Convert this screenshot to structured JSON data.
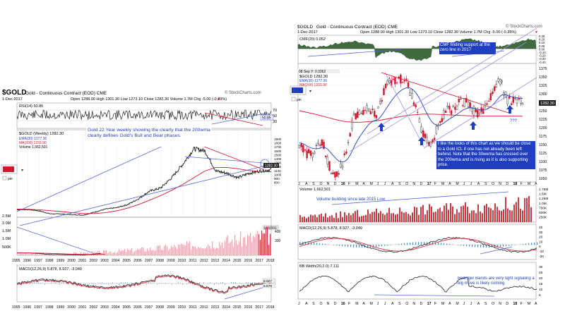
{
  "left_chart": {
    "symbol": "$GOLD",
    "name": "Gold - Continuous Contract (EOD) CME",
    "date": "1-Dec-2017",
    "ohlc": "Open 1288.00  High 1301.30  Low 1273.10  Close 1282.30  Volume 1.7M  Chg -5.00 (-0.39%)",
    "ohlc_arrow": "▼",
    "watermark": "© StockCharts.com",
    "rsi_label": "RSI(14) 50.85",
    "rsi_ticks": [
      "70",
      "50",
      "30"
    ],
    "rsi_value_badge": "50.85",
    "price_label": "$GOLD (Weekly) 1282.30",
    "ema_label": "EMA(30) 1277.36",
    "ma_label": "MA(200) 1233.90",
    "volume_label": "Volume 1,662,501",
    "price_ticks": [
      "1900",
      "1800",
      "1700",
      "1600",
      "1500",
      "1400",
      "1300",
      "1200",
      "1100",
      "1000",
      "900",
      "800"
    ],
    "price_badge": "1282.30",
    "volume_ticks": [
      "2.5M",
      "2.0M",
      "1.5M",
      "1.0M",
      "500K"
    ],
    "volume_right_ticks": [
      "400",
      "300"
    ],
    "volume_badge": "1662501",
    "macd_label": "MACD(12,26,9) 5.878, 8.927, -3.049",
    "macd_badges": [
      "8.927",
      "5.878"
    ],
    "annotation": "Gold 22 Year weekly showing the clearly that the 200wma clearly defines Gold's Bull and Bear phases.",
    "years_mid": [
      "1995",
      "1996",
      "1997",
      "1998",
      "1999",
      "2000",
      "2001",
      "2002",
      "2003",
      "2004",
      "2005",
      "2006",
      "2007",
      "2008",
      "2009",
      "2010",
      "2011",
      "2012",
      "2013",
      "2014",
      "2015",
      "2016",
      "2017",
      "2018"
    ],
    "years_bottom": [
      "1995",
      "1996",
      "1997",
      "1998",
      "1999",
      "2000",
      "2001",
      "2002",
      "2003",
      "2004",
      "2005",
      "2006",
      "2007",
      "2008",
      "2009",
      "2010",
      "2011",
      "2012",
      "2013",
      "2014",
      "2015",
      "2016",
      "2017",
      "2018"
    ],
    "pin_label": "pin"
  },
  "right_chart": {
    "symbol": "$GOLD",
    "name": "Gold - Continuous Contract (EOD) CME",
    "date": "1-Dec-2017",
    "ohlc": "Open 1288.00  High 1301.30  Low 1273.10  Close 1282.30  Volume 1.7M  Chg -5.00 (-0.39%)",
    "ohlc_arrow": "▼",
    "watermark": "© StockCharts.com",
    "cmf_label": "CMF(20) 0.052",
    "cmf_ticks": [
      "0.30",
      "0.20",
      "0.10",
      "0.05",
      "0.00",
      "-0.10",
      "-0.20",
      "-0.30",
      "-0.40"
    ],
    "cmf_annotation": "CMF finding support at the zero line in 2017",
    "tooltip": "08 Sep Y: 0.3362",
    "price_label": "$GOLD 1282.30",
    "ema_label": "EMA(30) 1277.36",
    "ma_label": "MA(200) 1233.90",
    "price_ticks": [
      "1375",
      "1350",
      "1325",
      "1300",
      "1275",
      "1250",
      "1225",
      "1200",
      "1175",
      "1150",
      "1125",
      "1100",
      "1075",
      "1050"
    ],
    "price_badge": "1282.30",
    "question_marks": "???",
    "annotation": "I like the looks of this chart as we should be close to a Gold ICL if one has not already been left behind. Note that the 30wema has crossed over the 200wma and is rising as it is also supporting price.",
    "volume_label": "Volume 1,662,501",
    "volume_annotation": "Volume building since late 2015 Low",
    "volume_ticks": [
      "1.75M",
      "1.5M",
      "1.25M",
      "1.0M",
      "750K",
      "500K",
      "250K"
    ],
    "macd_label": "MACD(12,26,9) 5.878, 8.927, -3.049",
    "macd_ticks": [
      "40",
      "30",
      "20",
      "10",
      "0",
      "-10",
      "-20"
    ],
    "bb_label": "BB Width(20,2.0) 7.111",
    "bb_ticks": [
      "30",
      "25",
      "20",
      "15",
      "10",
      "5"
    ],
    "bb_annotation": "Bollinger Bands are very tight signaling a big move is likely coming.",
    "months": [
      "J",
      "A",
      "S",
      "O",
      "N",
      "D",
      "16",
      "F",
      "M",
      "A",
      "M",
      "J",
      "J",
      "A",
      "S",
      "O",
      "N",
      "D",
      "17",
      "F",
      "M",
      "A",
      "M",
      "J",
      "J",
      "A",
      "S",
      "O",
      "N",
      "D",
      "18",
      "F",
      "M",
      "A"
    ],
    "pin_label": "pin"
  },
  "colors": {
    "price_up": "#222222",
    "price_down": "#d4142a",
    "ema": "#1f3fbf",
    "ma": "#d4142a",
    "trend": "#5566dd",
    "volume": "#c73b45",
    "cmf_fill": "#3f6b3f",
    "badge_bg": "#222222"
  },
  "chart_data": [
    {
      "type": "line",
      "title": "$GOLD (Weekly)",
      "x": [
        1995,
        1996,
        1997,
        1998,
        1999,
        2000,
        2001,
        2002,
        2003,
        2004,
        2005,
        2006,
        2007,
        2008,
        2009,
        2010,
        2011,
        2012,
        2013,
        2014,
        2015,
        2016,
        2017,
        2018
      ],
      "series": [
        {
          "name": "$GOLD (Weekly)",
          "values": [
            385,
            390,
            360,
            295,
            290,
            275,
            265,
            330,
            400,
            430,
            500,
            630,
            800,
            870,
            1100,
            1400,
            1750,
            1700,
            1250,
            1200,
            1100,
            1200,
            1250,
            1282
          ]
        },
        {
          "name": "MA(200)",
          "values": [
            400,
            395,
            385,
            365,
            345,
            320,
            300,
            300,
            320,
            360,
            420,
            500,
            600,
            700,
            820,
            950,
            1100,
            1250,
            1330,
            1330,
            1300,
            1260,
            1235,
            1234
          ]
        }
      ]
    },
    {
      "type": "line",
      "title": "$GOLD",
      "x": [
        "J",
        "A",
        "S",
        "O",
        "N",
        "D",
        "16",
        "F",
        "M",
        "A",
        "M",
        "J",
        "J",
        "A",
        "S",
        "O",
        "N",
        "D",
        "17",
        "F",
        "M",
        "A",
        "M",
        "J",
        "J",
        "A",
        "S",
        "O",
        "N",
        "D"
      ],
      "series": [
        {
          "name": "$GOLD",
          "values": [
            1155,
            1120,
            1130,
            1160,
            1080,
            1060,
            1120,
            1230,
            1240,
            1260,
            1230,
            1310,
            1340,
            1345,
            1330,
            1270,
            1180,
            1150,
            1200,
            1250,
            1255,
            1280,
            1270,
            1240,
            1250,
            1300,
            1345,
            1280,
            1280,
            1282
          ]
        },
        {
          "name": "MA(200)",
          "values": [
            1250,
            1245,
            1240,
            1234,
            1228,
            1222,
            1218,
            1216,
            1216,
            1218,
            1220,
            1224,
            1228,
            1232,
            1236,
            1238,
            1240,
            1240,
            1239,
            1238,
            1237,
            1236,
            1235,
            1234,
            1234,
            1234,
            1234,
            1234,
            1234,
            1234
          ]
        }
      ]
    }
  ]
}
